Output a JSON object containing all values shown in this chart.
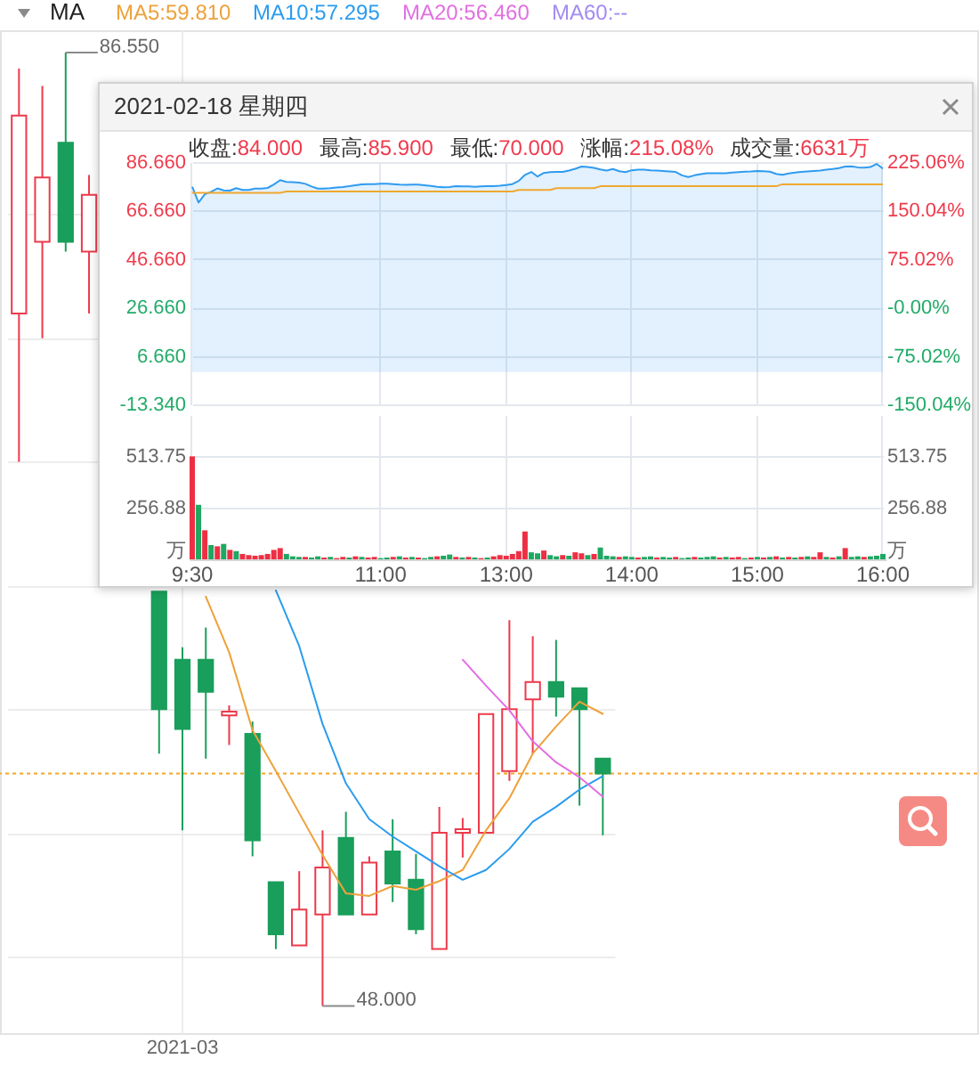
{
  "chart_data": [
    {
      "type": "candlestick",
      "categories": [
        null,
        null,
        null,
        null,
        null,
        null,
        null,
        "2021-03",
        null,
        null,
        null,
        null,
        null,
        null,
        null,
        null,
        null,
        null,
        null,
        null,
        null,
        null,
        null,
        null,
        null,
        null
      ],
      "ohlc": [
        [
          76.0,
          85.9,
          70.0,
          84.0
        ],
        [
          78.9,
          85.2,
          75.0,
          81.5
        ],
        [
          82.9,
          86.55,
          78.5,
          78.9
        ],
        [
          78.5,
          81.6,
          76.0,
          80.8
        ],
        null,
        null,
        [
          64.75,
          64.75,
          58.2,
          60.0
        ],
        [
          62.0,
          62.5,
          55.1,
          59.2
        ],
        [
          62.0,
          63.3,
          58.0,
          60.7
        ],
        [
          59.75,
          60.15,
          58.55,
          59.9
        ],
        [
          59.0,
          59.5,
          54.05,
          54.7
        ],
        [
          53.0,
          53.0,
          50.3,
          50.9
        ],
        [
          50.45,
          53.45,
          50.45,
          51.9
        ],
        [
          51.7,
          55.1,
          48.0,
          53.6
        ],
        [
          54.8,
          55.85,
          51.7,
          51.7
        ],
        [
          51.7,
          54.05,
          51.7,
          53.8
        ],
        [
          54.25,
          55.55,
          52.2,
          52.95
        ],
        [
          53.1,
          54.15,
          50.9,
          51.1
        ],
        [
          50.3,
          56.05,
          50.3,
          55.0
        ],
        [
          55.0,
          55.6,
          54.0,
          55.15
        ],
        [
          55.0,
          59.8,
          55.0,
          59.8
        ],
        [
          57.5,
          63.6,
          57.1,
          60.0
        ],
        [
          60.4,
          62.95,
          58.2,
          61.1
        ],
        [
          61.1,
          62.8,
          59.7,
          60.5
        ],
        [
          60.85,
          60.85,
          56.1,
          60.0
        ],
        [
          58.0,
          58.0,
          54.9,
          57.4
        ]
      ],
      "colors": [
        "#ec3a4b",
        "#ec3a4b",
        "#1a9e5b",
        "#ec3a4b",
        null,
        null,
        "#1a9e5b",
        "#1a9e5b",
        "#1a9e5b",
        "#ec3a4b",
        "#1a9e5b",
        "#1a9e5b",
        "#ec3a4b",
        "#ec3a4b",
        "#1a9e5b",
        "#ec3a4b",
        "#1a9e5b",
        "#1a9e5b",
        "#ec3a4b",
        "#ec3a4b",
        "#ec3a4b",
        "#ec3a4b",
        "#ec3a4b",
        "#1a9e5b",
        "#1a9e5b",
        "#1a9e5b"
      ],
      "series": [
        {
          "name": "MA5:59.810",
          "type": "line",
          "color": "#eea13a",
          "values": [
            null,
            null,
            null,
            null,
            null,
            null,
            null,
            null,
            64.55,
            62.3,
            59.15,
            57.5,
            55.8,
            54.1,
            52.55,
            52.45,
            52.85,
            52.7,
            53.05,
            53.5,
            55.1,
            56.4,
            58.2,
            59.3,
            60.3,
            59.81
          ]
        },
        {
          "name": "MA10:57.295",
          "type": "line",
          "color": "#2a9cee",
          "values": [
            null,
            null,
            null,
            null,
            null,
            null,
            null,
            null,
            null,
            null,
            null,
            64.8,
            62.55,
            59.4,
            57.0,
            55.55,
            54.85,
            54.25,
            53.65,
            53.1,
            53.5,
            54.35,
            55.45,
            56.05,
            56.75,
            57.295
          ]
        },
        {
          "name": "MA20:56.460",
          "type": "line",
          "color": "#e26fe2",
          "values": [
            null,
            null,
            null,
            null,
            null,
            null,
            null,
            null,
            null,
            null,
            null,
            null,
            null,
            null,
            null,
            null,
            null,
            null,
            null,
            62.0,
            60.95,
            59.95,
            58.7,
            57.85,
            57.25,
            56.46
          ]
        },
        {
          "name": "MA60:--",
          "type": "line",
          "color": "#a28cf2",
          "values": [
            null,
            null,
            null,
            null,
            null,
            null,
            null,
            null,
            null,
            null,
            null,
            null,
            null,
            null,
            null,
            null,
            null,
            null,
            null,
            null,
            null,
            null,
            null,
            null,
            null,
            null
          ]
        }
      ],
      "legend_title": "MA",
      "legend": "top",
      "ylim": [
        46.9,
        87.45
      ],
      "yticks": [
        {
          "value": 50,
          "label": null
        },
        {
          "value": 55,
          "label": null
        },
        {
          "value": 60,
          "label": null
        },
        {
          "value": 65,
          "label": null
        },
        {
          "value": 70,
          "label": null
        },
        {
          "value": 75,
          "label": null
        },
        {
          "value": 80,
          "label": null
        }
      ],
      "tick_labels": "x",
      "grid": true,
      "annotations": [
        "86.550",
        "48.000"
      ],
      "ref_lines": [
        {
          "axis": "y",
          "value": 57.4,
          "color": "#f5a623",
          "line_style": "dotted"
        }
      ]
    },
    {
      "type": "line",
      "title": "2021-02-18 星期四",
      "subtitle": "收盘:84.000 最高:85.900 最低:70.000 涨幅:215.08% 成交量:6631万",
      "categories": [
        null,
        null,
        null,
        null,
        null,
        null,
        null,
        null,
        null,
        null,
        null,
        null,
        null,
        null,
        null,
        null,
        null,
        null,
        null,
        null,
        null,
        null,
        null,
        null,
        null,
        null,
        null,
        null,
        null,
        null,
        null,
        null,
        null,
        null,
        null,
        null,
        null,
        null,
        null,
        null,
        null,
        null,
        null,
        null,
        null,
        null,
        null,
        null,
        null,
        null,
        null,
        null,
        null,
        null,
        null,
        null,
        null,
        null,
        null,
        null,
        null,
        null,
        null,
        null,
        null,
        null,
        null,
        null,
        null,
        null,
        null,
        null,
        null,
        null,
        null,
        null,
        null,
        null,
        null,
        null,
        null,
        null,
        null,
        null,
        null,
        null,
        null,
        null,
        null,
        null,
        null,
        null,
        null,
        null,
        null,
        null,
        null,
        null,
        null,
        null,
        null,
        null,
        null,
        null,
        null,
        null,
        null,
        null,
        null,
        null,
        null
      ],
      "series": [
        {
          "type": "area",
          "color": "#2f9bf0",
          "values": [
            76.5,
            70.0,
            73.4,
            74.4,
            75.8,
            75.0,
            74.9,
            75.9,
            75.2,
            75.2,
            75.7,
            75.7,
            76.0,
            77.4,
            79.2,
            78.5,
            78.4,
            78.2,
            77.7,
            76.6,
            75.7,
            75.7,
            75.9,
            76.2,
            76.4,
            76.7,
            77.1,
            77.5,
            77.6,
            77.6,
            77.7,
            77.7,
            77.6,
            77.4,
            77.3,
            77.4,
            77.4,
            77.1,
            76.8,
            76.5,
            76.3,
            76.4,
            76.7,
            76.6,
            76.6,
            76.5,
            76.6,
            76.7,
            76.7,
            76.9,
            77.2,
            77.6,
            78.9,
            81.4,
            82.6,
            80.7,
            82.2,
            82.5,
            82.6,
            82.6,
            83.2,
            83.9,
            84.8,
            84.6,
            84.3,
            83.6,
            83.2,
            83.8,
            82.9,
            82.5,
            83.3,
            83.5,
            83.5,
            83.3,
            83.2,
            83.0,
            82.8,
            82.6,
            81.2,
            80.5,
            81.2,
            81.7,
            82.1,
            82.1,
            82.1,
            82.1,
            82.3,
            82.5,
            82.7,
            82.8,
            83.0,
            82.9,
            82.7,
            81.8,
            81.4,
            82.0,
            82.3,
            82.6,
            82.8,
            83.0,
            83.2,
            83.5,
            83.8,
            84.2,
            84.8,
            84.9,
            84.5,
            84.4,
            84.6,
            85.9,
            84.0
          ]
        },
        {
          "type": "line",
          "color": "#f0a830",
          "values": [
            74.0,
            74.0,
            74.0,
            74.0,
            74.0,
            74.0,
            74.0,
            74.0,
            74.0,
            74.0,
            74.0,
            74.0,
            74.0,
            74.0,
            74.0,
            74.5,
            74.5,
            74.5,
            74.5,
            74.5,
            74.5,
            74.5,
            74.5,
            74.5,
            74.5,
            74.5,
            74.5,
            74.5,
            74.5,
            74.5,
            74.5,
            74.5,
            74.5,
            74.5,
            74.5,
            74.5,
            74.5,
            74.5,
            74.5,
            74.5,
            74.5,
            74.5,
            74.5,
            74.5,
            74.5,
            74.5,
            74.5,
            74.5,
            74.5,
            74.5,
            74.5,
            74.5,
            75.2,
            75.2,
            75.2,
            75.2,
            75.2,
            75.2,
            75.9,
            75.9,
            75.9,
            75.9,
            75.9,
            75.9,
            75.9,
            76.7,
            76.7,
            76.7,
            76.7,
            76.7,
            76.7,
            76.7,
            76.7,
            76.7,
            76.7,
            76.7,
            76.7,
            76.7,
            76.7,
            76.7,
            76.7,
            76.7,
            76.7,
            76.7,
            76.7,
            76.7,
            76.7,
            76.7,
            76.7,
            76.7,
            76.7,
            76.7,
            76.7,
            76.7,
            77.5,
            77.5,
            77.5,
            77.5,
            77.5,
            77.5,
            77.5,
            77.5,
            77.5,
            77.5,
            77.5,
            77.5,
            77.5,
            77.5,
            77.5,
            77.5,
            77.5
          ]
        }
      ],
      "ylim": [
        -13.34,
        86.66
      ],
      "yticks": [
        {
          "value": 86.66,
          "label": "86.660"
        },
        {
          "value": 66.66,
          "label": "66.660"
        },
        {
          "value": 46.66,
          "label": "46.660"
        },
        {
          "value": 26.66,
          "label": "26.660"
        },
        {
          "value": 6.66,
          "label": "6.660"
        },
        {
          "value": -13.34,
          "label": "-13.340"
        }
      ],
      "y2lim": [
        -150.04,
        225.06
      ],
      "y2ticks": [
        {
          "value": 225.06,
          "label": "225.06%"
        },
        {
          "value": 150.04,
          "label": "150.04%"
        },
        {
          "value": 75.02,
          "label": "75.02%"
        },
        {
          "value": 0,
          "label": "-0.00%"
        },
        {
          "value": -75.02,
          "label": "-75.02%"
        },
        {
          "value": -150.04,
          "label": "-150.04%"
        }
      ],
      "grid": true,
      "tick_labels": "y"
    },
    {
      "type": "bar",
      "categories": [
        "9:30",
        null,
        null,
        null,
        null,
        null,
        null,
        null,
        null,
        null,
        null,
        null,
        null,
        null,
        null,
        null,
        null,
        null,
        null,
        null,
        null,
        null,
        null,
        null,
        null,
        null,
        null,
        null,
        null,
        null,
        "11:00",
        null,
        null,
        null,
        null,
        null,
        null,
        null,
        null,
        null,
        null,
        null,
        null,
        null,
        null,
        null,
        null,
        null,
        null,
        null,
        "13:00",
        null,
        null,
        null,
        null,
        null,
        null,
        null,
        null,
        null,
        null,
        null,
        null,
        null,
        null,
        null,
        null,
        null,
        null,
        null,
        "14:00",
        null,
        null,
        null,
        null,
        null,
        null,
        null,
        null,
        null,
        null,
        null,
        null,
        null,
        null,
        null,
        null,
        null,
        null,
        null,
        "15:00",
        null,
        null,
        null,
        null,
        null,
        null,
        null,
        null,
        null,
        null,
        null,
        null,
        null,
        null,
        null,
        null,
        null,
        null,
        null,
        "16:00"
      ],
      "values": [
        513.75,
        272,
        145,
        71,
        65,
        77,
        47,
        41,
        27,
        21,
        18,
        21,
        27,
        47,
        56,
        27,
        15,
        12,
        12,
        9,
        15,
        9,
        12,
        6,
        12,
        9,
        15,
        12,
        9,
        12,
        6,
        9,
        12,
        15,
        9,
        12,
        9,
        6,
        12,
        15,
        18,
        24,
        12,
        9,
        12,
        9,
        6,
        9,
        15,
        21,
        18,
        27,
        41,
        139,
        35,
        30,
        44,
        21,
        15,
        21,
        18,
        35,
        30,
        21,
        27,
        59,
        18,
        15,
        12,
        15,
        12,
        9,
        12,
        15,
        9,
        12,
        9,
        12,
        6,
        9,
        12,
        9,
        12,
        15,
        9,
        12,
        9,
        12,
        6,
        9,
        12,
        9,
        12,
        15,
        9,
        12,
        9,
        12,
        15,
        12,
        35,
        12,
        9,
        15,
        56,
        12,
        15,
        12,
        15,
        18,
        27
      ],
      "colors": [
        "#ee2f43",
        "#1ea862",
        "#ee2f43",
        "#1ea862",
        "#ee2f43",
        "#1ea862",
        "#ee2f43",
        "#1ea862",
        "#ee2f43",
        "#ee2f43",
        "#ee2f43",
        "#ee2f43",
        "#ee2f43",
        "#ee2f43",
        "#ee2f43",
        "#1ea862",
        "#1ea862",
        "#1ea862",
        "#ee2f43",
        "#1ea862",
        "#1ea862",
        "#ee2f43",
        "#1ea862",
        "#ee2f43",
        "#ee2f43",
        "#1ea862",
        "#ee2f43",
        "#1ea862",
        "#ee2f43",
        "#ee2f43",
        "#1ea862",
        "#1ea862",
        "#ee2f43",
        "#1ea862",
        "#ee2f43",
        "#1ea862",
        "#ee2f43",
        "#1ea862",
        "#1ea862",
        "#ee2f43",
        "#1ea862",
        "#1ea862",
        "#ee2f43",
        "#1ea862",
        "#ee2f43",
        "#1ea862",
        "#ee2f43",
        "#1ea862",
        "#ee2f43",
        "#ee2f43",
        "#ee2f43",
        "#ee2f43",
        "#ee2f43",
        "#ee2f43",
        "#1ea862",
        "#1ea862",
        "#ee2f43",
        "#1ea862",
        "#1ea862",
        "#ee2f43",
        "#1ea862",
        "#ee2f43",
        "#ee2f43",
        "#1ea862",
        "#ee2f43",
        "#1ea862",
        "#1ea862",
        "#1ea862",
        "#ee2f43",
        "#1ea862",
        "#1ea862",
        "#ee2f43",
        "#1ea862",
        "#1ea862",
        "#ee2f43",
        "#1ea862",
        "#1ea862",
        "#ee2f43",
        "#1ea862",
        "#1ea862",
        "#ee2f43",
        "#1ea862",
        "#1ea862",
        "#1ea862",
        "#ee2f43",
        "#1ea862",
        "#ee2f43",
        "#ee2f43",
        "#1ea862",
        "#ee2f43",
        "#1ea862",
        "#ee2f43",
        "#1ea862",
        "#ee2f43",
        "#1ea862",
        "#ee2f43",
        "#1ea862",
        "#ee2f43",
        "#1ea862",
        "#ee2f43",
        "#ee2f43",
        "#1ea862",
        "#ee2f43",
        "#1ea862",
        "#ee2f43",
        "#1ea862",
        "#1ea862",
        "#ee2f43",
        "#1ea862",
        "#1ea862",
        "#1ea862"
      ],
      "ylim": [
        0,
        720
      ],
      "yticks": [
        {
          "value": 0,
          "label": "万"
        },
        256.88,
        513.75
      ],
      "y2lim": [
        0,
        720
      ],
      "y2ticks": [
        {
          "value": 0,
          "label": "万"
        },
        256.88,
        513.75
      ],
      "grid": true
    }
  ]
}
